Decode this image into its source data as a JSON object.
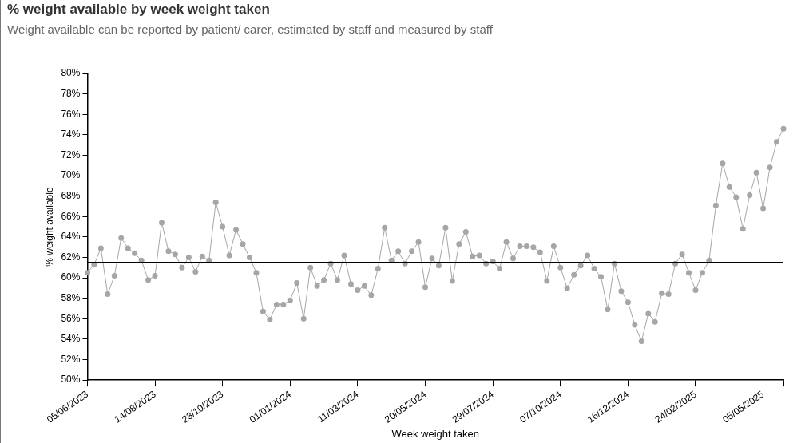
{
  "chart_data": {
    "type": "line",
    "title": "% weight available by week weight taken",
    "subtitle": "Weight available can be reported by patient/ carer, estimated by staff and measured by staff",
    "xlabel": "Week weight taken",
    "ylabel": "% weight available",
    "x": [
      "2023-06-05",
      "2023-06-12",
      "2023-06-19",
      "2023-06-26",
      "2023-07-03",
      "2023-07-10",
      "2023-07-17",
      "2023-07-24",
      "2023-07-31",
      "2023-08-07",
      "2023-08-14",
      "2023-08-21",
      "2023-08-28",
      "2023-09-04",
      "2023-09-11",
      "2023-09-18",
      "2023-09-25",
      "2023-10-02",
      "2023-10-09",
      "2023-10-16",
      "2023-10-23",
      "2023-10-30",
      "2023-11-06",
      "2023-11-13",
      "2023-11-20",
      "2023-11-27",
      "2023-12-04",
      "2023-12-11",
      "2023-12-18",
      "2023-12-25",
      "2024-01-01",
      "2024-01-08",
      "2024-01-15",
      "2024-01-22",
      "2024-01-29",
      "2024-02-05",
      "2024-02-12",
      "2024-02-19",
      "2024-02-26",
      "2024-03-04",
      "2024-03-11",
      "2024-03-18",
      "2024-03-25",
      "2024-04-01",
      "2024-04-08",
      "2024-04-15",
      "2024-04-22",
      "2024-04-29",
      "2024-05-06",
      "2024-05-13",
      "2024-05-20",
      "2024-05-27",
      "2024-06-03",
      "2024-06-10",
      "2024-06-17",
      "2024-06-24",
      "2024-07-01",
      "2024-07-08",
      "2024-07-15",
      "2024-07-22",
      "2024-07-29",
      "2024-08-05",
      "2024-08-12",
      "2024-08-19",
      "2024-08-26",
      "2024-09-02",
      "2024-09-09",
      "2024-09-16",
      "2024-09-23",
      "2024-09-30",
      "2024-10-07",
      "2024-10-14",
      "2024-10-21",
      "2024-10-28",
      "2024-11-04",
      "2024-11-11",
      "2024-11-18",
      "2024-11-25",
      "2024-12-02",
      "2024-12-09",
      "2024-12-16",
      "2024-12-23",
      "2024-12-30",
      "2025-01-06",
      "2025-01-13",
      "2025-01-20",
      "2025-01-27",
      "2025-02-03",
      "2025-02-10",
      "2025-02-17",
      "2025-02-24",
      "2025-03-03",
      "2025-03-10",
      "2025-03-17",
      "2025-03-24",
      "2025-03-31",
      "2025-04-07",
      "2025-04-14",
      "2025-04-21",
      "2025-04-28",
      "2025-05-05",
      "2025-05-12",
      "2025-05-19",
      "2025-05-26"
    ],
    "series": [
      {
        "color": "#a6a6a6",
        "values": [
          60.5,
          61.3,
          62.9,
          58.4,
          60.2,
          63.9,
          62.9,
          62.4,
          61.7,
          59.8,
          60.2,
          65.4,
          62.6,
          62.3,
          61.0,
          62.0,
          60.6,
          62.1,
          61.7,
          67.4,
          65.0,
          62.2,
          64.7,
          63.3,
          62.0,
          60.5,
          56.7,
          55.9,
          57.4,
          57.4,
          57.8,
          59.5,
          56.0,
          61.0,
          59.2,
          59.8,
          61.4,
          59.8,
          62.2,
          59.4,
          58.8,
          59.2,
          58.3,
          60.9,
          64.9,
          61.7,
          62.6,
          61.4,
          62.6,
          63.5,
          59.1,
          61.9,
          61.2,
          64.9,
          59.7,
          63.3,
          64.5,
          62.1,
          62.2,
          61.4,
          61.6,
          60.9,
          63.5,
          61.9,
          63.1,
          63.1,
          63.0,
          62.5,
          59.7,
          63.1,
          61.0,
          59.0,
          60.3,
          61.2,
          62.2,
          60.9,
          60.1,
          56.9,
          61.4,
          58.7,
          57.6,
          55.4,
          53.8,
          56.5,
          55.7,
          58.5,
          58.4,
          61.4,
          62.3,
          60.5,
          58.8,
          60.5,
          61.7,
          67.1,
          71.2,
          68.9,
          67.9,
          64.8,
          68.1,
          70.3,
          66.8,
          70.8,
          73.3,
          74.6
        ]
      }
    ],
    "xlim": [
      "2023-06-05",
      "2025-05-26"
    ],
    "xticks": [
      {
        "value": "2023-06-05",
        "label": "05/06/2023"
      },
      {
        "value": "2023-08-14",
        "label": "14/08/2023"
      },
      {
        "value": "2023-10-23",
        "label": "23/10/2023"
      },
      {
        "value": "2024-01-01",
        "label": "01/01/2024"
      },
      {
        "value": "2024-03-11",
        "label": "11/03/2024"
      },
      {
        "value": "2024-05-20",
        "label": "20/05/2024"
      },
      {
        "value": "2024-07-29",
        "label": "29/07/2024"
      },
      {
        "value": "2024-10-07",
        "label": "07/10/2024"
      },
      {
        "value": "2024-12-16",
        "label": "16/12/2024"
      },
      {
        "value": "2025-02-24",
        "label": "24/02/2025"
      },
      {
        "value": "2025-05-05",
        "label": "05/05/2025"
      },
      {
        "value": "2025-05-26",
        "label": null
      }
    ],
    "ylim": [
      50,
      80
    ],
    "yticks": [
      {
        "value": 50,
        "label": "50%"
      },
      {
        "value": 52,
        "label": "52%"
      },
      {
        "value": 54,
        "label": "54%"
      },
      {
        "value": 56,
        "label": "56%"
      },
      {
        "value": 58,
        "label": "58%"
      },
      {
        "value": 60,
        "label": "60%"
      },
      {
        "value": 62,
        "label": "62%"
      },
      {
        "value": 64,
        "label": "64%"
      },
      {
        "value": 66,
        "label": "66%"
      },
      {
        "value": 68,
        "label": "68%"
      },
      {
        "value": 70,
        "label": "70%"
      },
      {
        "value": 72,
        "label": "72%"
      },
      {
        "value": 74,
        "label": "74%"
      },
      {
        "value": 76,
        "label": "76%"
      },
      {
        "value": 78,
        "label": "78%"
      },
      {
        "value": 80,
        "label": "80%"
      }
    ],
    "ref_lines": [
      {
        "axis": "y",
        "value": 61.5,
        "color": "#000000"
      }
    ],
    "grid": false,
    "legend": false,
    "marker": "circle"
  }
}
